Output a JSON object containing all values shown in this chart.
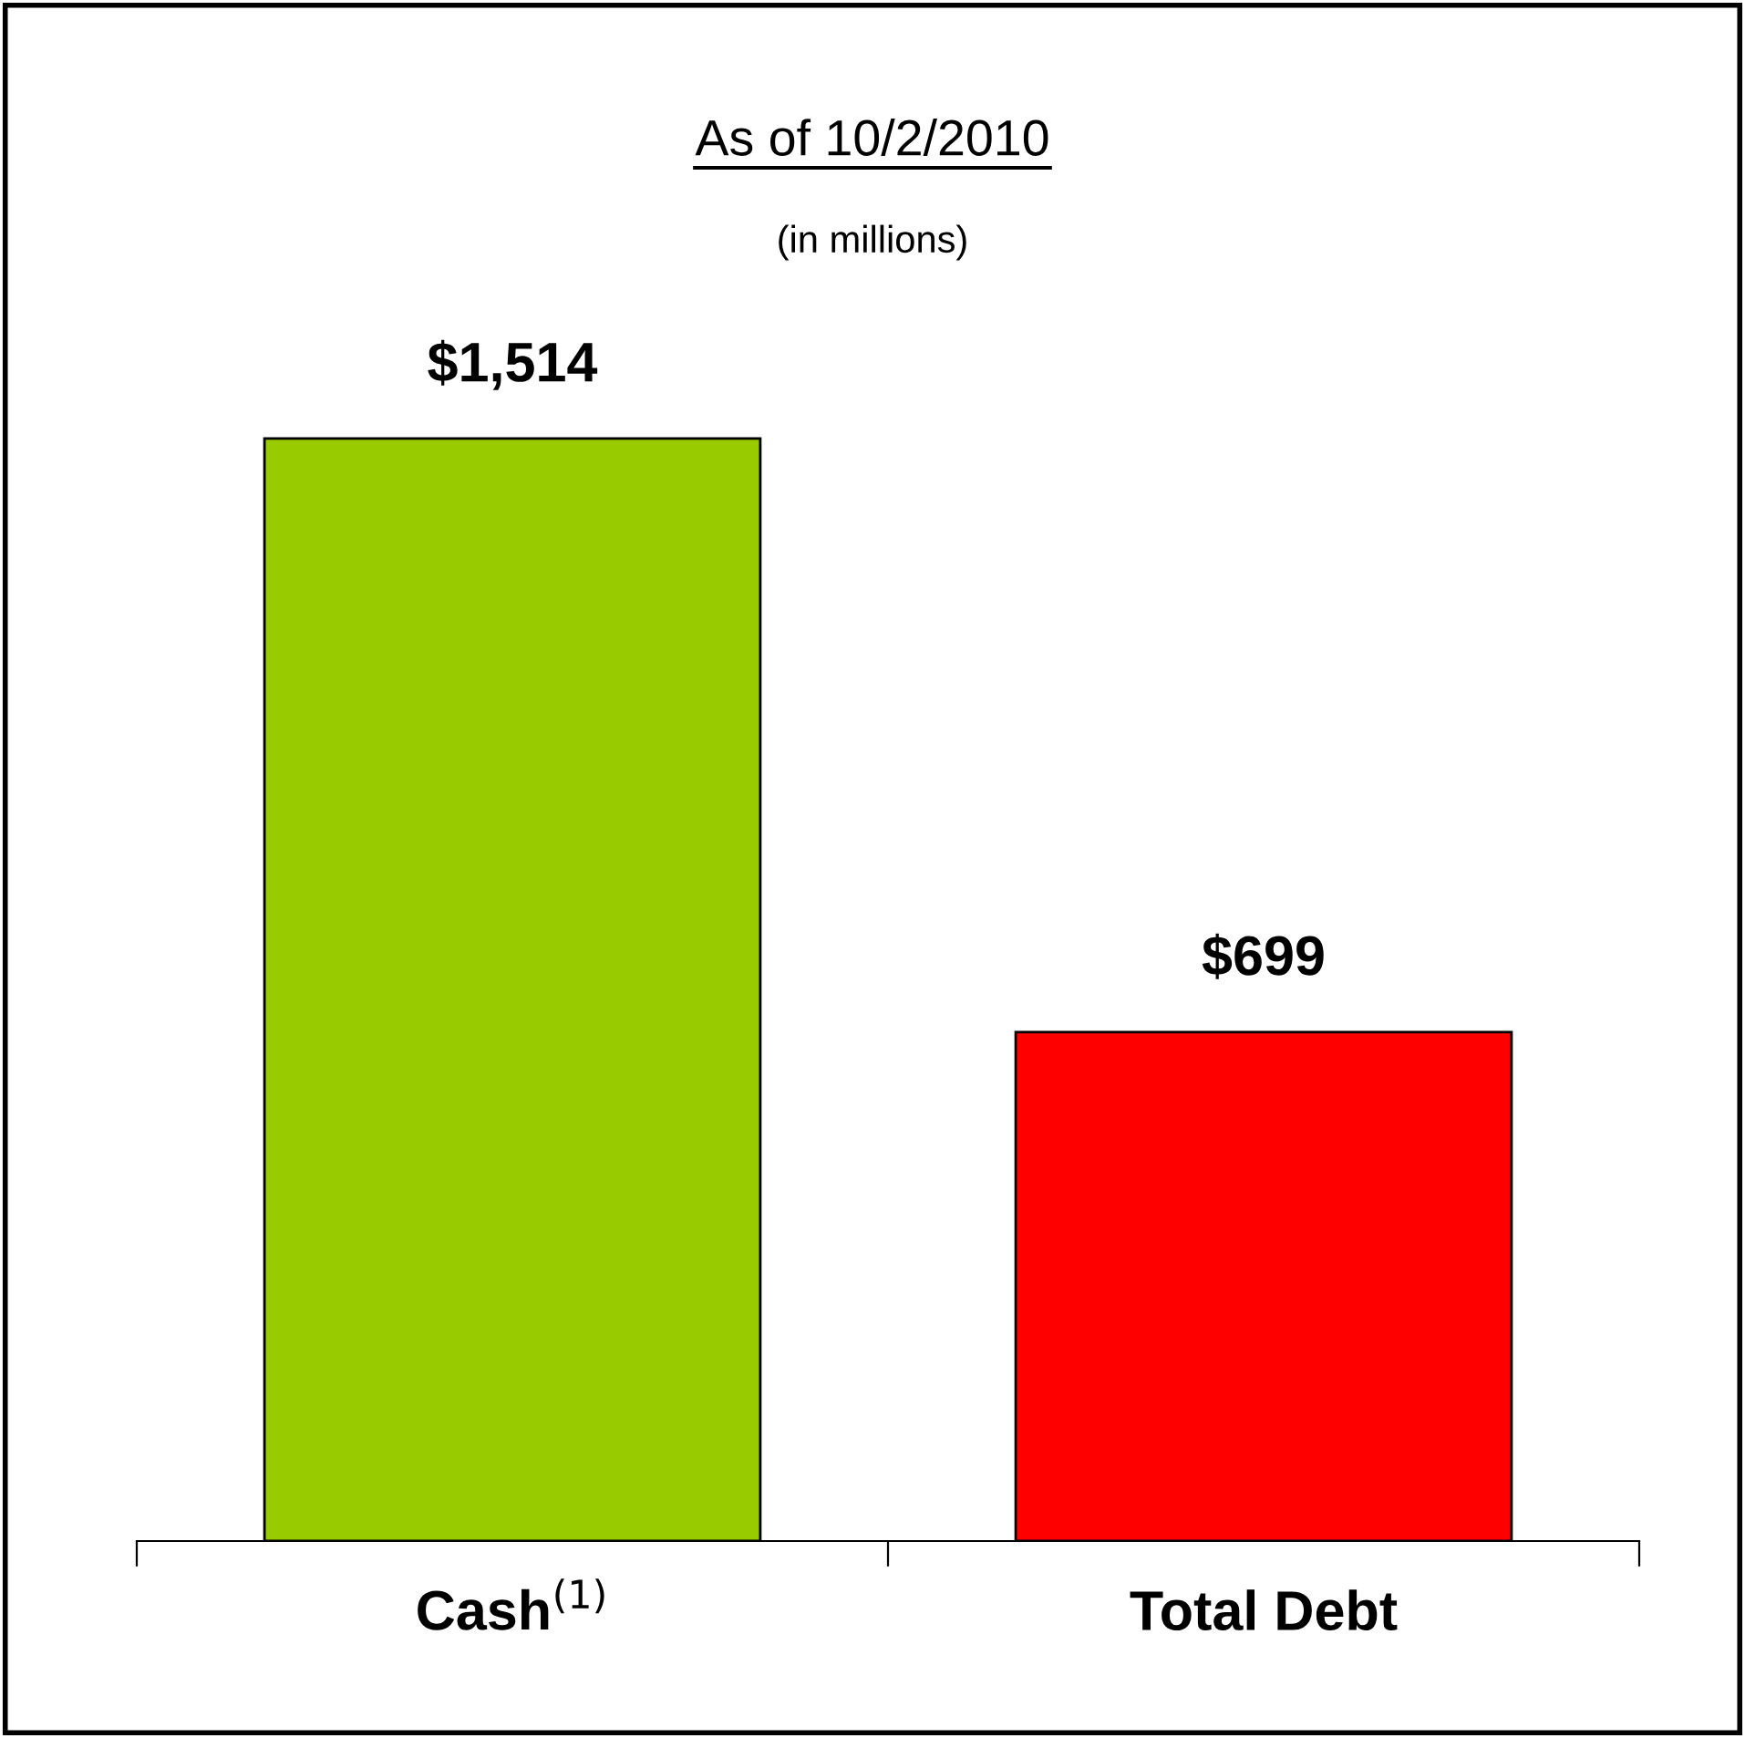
{
  "chart_data": {
    "type": "bar",
    "title": "As of 10/2/2010",
    "subtitle": "(in millions)",
    "categories": [
      "Cash$^{(1)}$",
      "Total Debt"
    ],
    "values": [
      1514,
      699
    ],
    "colors": [
      "#99cc00",
      "#ff0000"
    ],
    "value_labels": [
      "$1,514",
      "$699"
    ],
    "grid": false,
    "legend": false,
    "tick_labels": "x"
  }
}
